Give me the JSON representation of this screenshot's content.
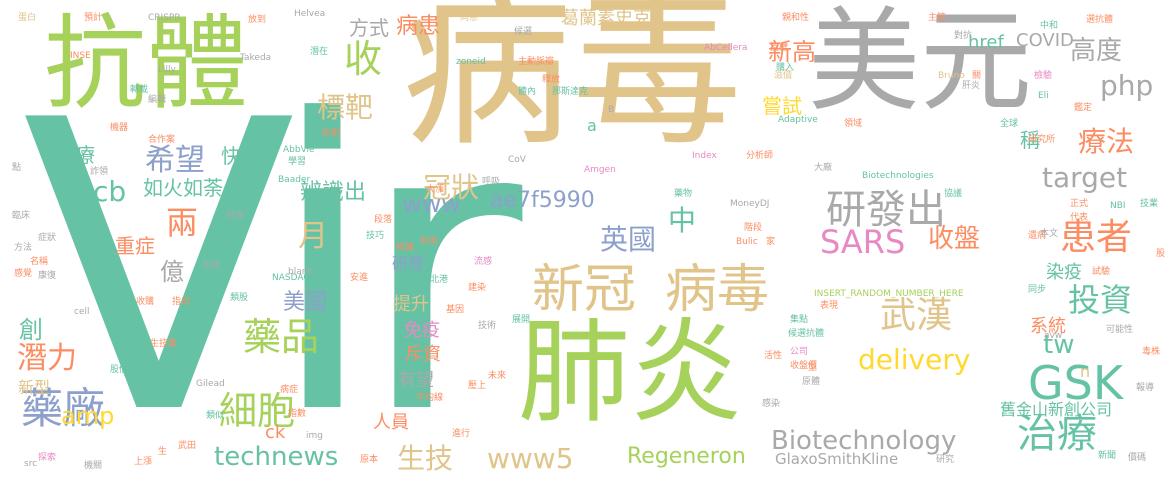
{
  "colors": {
    "green": "#a6d15a",
    "tan": "#e0c48a",
    "gray": "#a9a9a9",
    "teal": "#66c2a5",
    "orange": "#fc8d62",
    "blue": "#8da0cb",
    "yellow": "#ffd92f",
    "pink": "#e78ac3"
  },
  "words": [
    {
      "text": "Vir",
      "color": "teal"
    },
    {
      "text": "病毒",
      "color": "tan"
    },
    {
      "text": "美元",
      "color": "gray"
    },
    {
      "text": "抗體",
      "color": "green"
    },
    {
      "text": "肺炎",
      "color": "green"
    },
    {
      "text": "新冠",
      "color": "tan"
    },
    {
      "text": "病毒",
      "color": "tan"
    },
    {
      "text": "GSK",
      "color": "teal"
    },
    {
      "text": "收",
      "color": "green"
    },
    {
      "text": "藥品",
      "color": "green"
    },
    {
      "text": "細胞",
      "color": "green"
    },
    {
      "text": "藥廠",
      "color": "blue"
    },
    {
      "text": "研發出",
      "color": "gray"
    },
    {
      "text": "患者",
      "color": "orange"
    },
    {
      "text": "治療",
      "color": "teal"
    },
    {
      "text": "投資",
      "color": "teal"
    },
    {
      "text": "武漢",
      "color": "tan"
    },
    {
      "text": "SARS",
      "color": "pink"
    },
    {
      "text": "delivery",
      "color": "yellow"
    },
    {
      "text": "technews",
      "color": "teal"
    },
    {
      "text": "Biotechnology",
      "color": "gray"
    },
    {
      "text": "Regeneron",
      "color": "green"
    },
    {
      "text": "www5",
      "color": "tan"
    },
    {
      "text": "生技",
      "color": "tan"
    },
    {
      "text": "療法",
      "color": "orange"
    },
    {
      "text": "target",
      "color": "gray"
    },
    {
      "text": "高度",
      "color": "gray"
    },
    {
      "text": "php",
      "color": "gray"
    },
    {
      "text": "新高",
      "color": "orange"
    },
    {
      "text": "標靶",
      "color": "tan"
    },
    {
      "text": "冠狀",
      "color": "tan"
    },
    {
      "text": "www",
      "color": "blue"
    },
    {
      "text": "英國",
      "color": "blue"
    },
    {
      "text": "中",
      "color": "teal"
    },
    {
      "text": "收盤",
      "color": "orange"
    },
    {
      "text": "tw",
      "color": "teal"
    },
    {
      "text": "cb",
      "color": "teal"
    },
    {
      "text": "兩",
      "color": "orange"
    },
    {
      "text": "月",
      "color": "tan"
    },
    {
      "text": "希望",
      "color": "blue"
    },
    {
      "text": "潛力",
      "color": "orange"
    },
    {
      "text": "amp",
      "color": "yellow"
    },
    {
      "text": "美國",
      "color": "blue"
    },
    {
      "text": "億",
      "color": "gray"
    },
    {
      "text": "辨識出",
      "color": "teal"
    },
    {
      "text": "ae7f5990",
      "color": "blue"
    },
    {
      "text": "如火如荼",
      "color": "teal"
    },
    {
      "text": "快速",
      "color": "teal"
    },
    {
      "text": "重症",
      "color": "orange"
    },
    {
      "text": "嘗試",
      "color": "yellow"
    },
    {
      "text": "方式",
      "color": "gray"
    },
    {
      "text": "病患",
      "color": "orange"
    },
    {
      "text": "葛蘭素史克",
      "color": "tan"
    },
    {
      "text": "COVID",
      "color": "gray"
    },
    {
      "text": "href",
      "color": "teal"
    },
    {
      "text": "系統",
      "color": "orange"
    },
    {
      "text": "染疫",
      "color": "teal"
    },
    {
      "text": "稱",
      "color": "teal"
    },
    {
      "text": "舊金山新創公司",
      "color": "teal"
    },
    {
      "text": "GlaxoSmithKline",
      "color": "gray"
    },
    {
      "text": "醫療",
      "color": "teal"
    },
    {
      "text": "創",
      "color": "teal"
    },
    {
      "text": "新型",
      "color": "tan"
    },
    {
      "text": "免疫",
      "color": "pink"
    },
    {
      "text": "斥資",
      "color": "orange"
    },
    {
      "text": "有望",
      "color": "gray"
    },
    {
      "text": "提升",
      "color": "tan"
    },
    {
      "text": "人員",
      "color": "orange"
    },
    {
      "text": "研發",
      "color": "blue"
    },
    {
      "text": "ck",
      "color": "orange"
    },
    {
      "text": "a",
      "color": "teal"
    },
    {
      "text": "n",
      "color": "tan"
    },
    {
      "text": "INSERT_RANDOM_NUMBER_HERE",
      "color": "green"
    },
    {
      "text": "Biotechnologies",
      "color": "teal"
    },
    {
      "text": "Adaptive",
      "color": "teal"
    },
    {
      "text": "AbCellera",
      "color": "pink"
    },
    {
      "text": "Amgen",
      "color": "pink"
    },
    {
      "text": "MoneyDJ",
      "color": "gray"
    },
    {
      "text": "Baader",
      "color": "teal"
    },
    {
      "text": "AbbVie",
      "color": "teal"
    },
    {
      "text": "Takeda",
      "color": "gray"
    },
    {
      "text": "Gilead",
      "color": "gray"
    },
    {
      "text": "NASDAQ",
      "color": "teal"
    },
    {
      "text": "Lilly",
      "color": "gray"
    },
    {
      "text": "CRISPR",
      "color": "gray"
    },
    {
      "text": "Helvea",
      "color": "gray"
    },
    {
      "text": "Bruno",
      "color": "tan"
    },
    {
      "text": "Bulic",
      "color": "orange"
    },
    {
      "text": "Index",
      "color": "pink"
    },
    {
      "text": "zoneid",
      "color": "teal"
    },
    {
      "text": "CoV",
      "color": "gray"
    },
    {
      "text": "blank",
      "color": "gray"
    },
    {
      "text": "img",
      "color": "gray"
    },
    {
      "text": "src",
      "color": "gray"
    },
    {
      "text": "cell",
      "color": "gray"
    },
    {
      "text": "avw",
      "color": "gray"
    },
    {
      "text": "NBI",
      "color": "teal"
    },
    {
      "text": "INSE",
      "color": "orange"
    },
    {
      "text": "Eli",
      "color": "teal"
    },
    {
      "text": "B",
      "color": "gray"
    },
    {
      "text": "蛋白",
      "color": "tan"
    },
    {
      "text": "預計",
      "color": "orange"
    },
    {
      "text": "同意",
      "color": "tan"
    },
    {
      "text": "候選",
      "color": "gray"
    },
    {
      "text": "主管",
      "color": "orange"
    },
    {
      "text": "選抗體",
      "color": "orange"
    },
    {
      "text": "親和性",
      "color": "orange"
    },
    {
      "text": "對抗",
      "color": "gray"
    },
    {
      "text": "中和",
      "color": "teal"
    },
    {
      "text": "檢驗",
      "color": "pink"
    },
    {
      "text": "鑑定",
      "color": "orange"
    },
    {
      "text": "肝炎",
      "color": "gray"
    },
    {
      "text": "滋價",
      "color": "tan"
    },
    {
      "text": "潛在",
      "color": "teal"
    },
    {
      "text": "轉載",
      "color": "teal"
    },
    {
      "text": "編輯",
      "color": "gray"
    },
    {
      "text": "機器",
      "color": "orange"
    },
    {
      "text": "合作案",
      "color": "orange"
    },
    {
      "text": "學習",
      "color": "teal"
    },
    {
      "text": "類似",
      "color": "teal"
    },
    {
      "text": "病症",
      "color": "orange"
    },
    {
      "text": "指數",
      "color": "orange"
    },
    {
      "text": "原本",
      "color": "orange"
    },
    {
      "text": "新聞",
      "color": "teal"
    },
    {
      "text": "價碼",
      "color": "gray"
    },
    {
      "text": "研究",
      "color": "gray"
    },
    {
      "text": "感染",
      "color": "gray"
    },
    {
      "text": "原體",
      "color": "gray"
    },
    {
      "text": "收盤價",
      "color": "orange"
    },
    {
      "text": "公司",
      "color": "pink"
    },
    {
      "text": "活性",
      "color": "orange"
    },
    {
      "text": "未來",
      "color": "orange"
    },
    {
      "text": "進行",
      "color": "orange"
    },
    {
      "text": "平均線",
      "color": "orange"
    },
    {
      "text": "展開",
      "color": "teal"
    },
    {
      "text": "集點",
      "color": "teal"
    },
    {
      "text": "表現",
      "color": "orange"
    },
    {
      "text": "候選抗體",
      "color": "teal"
    },
    {
      "text": "技術",
      "color": "gray"
    },
    {
      "text": "基因",
      "color": "orange"
    },
    {
      "text": "建染",
      "color": "orange"
    },
    {
      "text": "北港",
      "color": "teal"
    },
    {
      "text": "利用",
      "color": "orange"
    },
    {
      "text": "辨識",
      "color": "orange"
    },
    {
      "text": "技巧",
      "color": "teal"
    },
    {
      "text": "安進",
      "color": "orange"
    },
    {
      "text": "指出",
      "color": "orange"
    },
    {
      "text": "收購",
      "color": "orange"
    },
    {
      "text": "類股",
      "color": "teal"
    },
    {
      "text": "包括",
      "color": "gray"
    },
    {
      "text": "方法",
      "color": "gray"
    },
    {
      "text": "感覺",
      "color": "orange"
    },
    {
      "text": "名稱",
      "color": "orange"
    },
    {
      "text": "康復",
      "color": "gray"
    },
    {
      "text": "症狀",
      "color": "gray"
    },
    {
      "text": "臨床",
      "color": "gray"
    },
    {
      "text": "點",
      "color": "gray"
    },
    {
      "text": "詐領",
      "color": "gray"
    },
    {
      "text": "探索",
      "color": "pink"
    },
    {
      "text": "機關",
      "color": "gray"
    },
    {
      "text": "上漲",
      "color": "orange"
    },
    {
      "text": "武田",
      "color": "orange"
    },
    {
      "text": "生",
      "color": "orange"
    },
    {
      "text": "股價",
      "color": "teal"
    },
    {
      "text": "生技業",
      "color": "orange"
    },
    {
      "text": "放到",
      "color": "orange"
    },
    {
      "text": "呼吸",
      "color": "gray"
    },
    {
      "text": "大漲",
      "color": "orange"
    },
    {
      "text": "大廠",
      "color": "gray"
    },
    {
      "text": "分析師",
      "color": "orange"
    },
    {
      "text": "那斯達克",
      "color": "teal"
    },
    {
      "text": "主動脈瓣",
      "color": "orange"
    },
    {
      "text": "體內",
      "color": "teal"
    },
    {
      "text": "抑制",
      "color": "orange"
    },
    {
      "text": "冠病",
      "color": "gray"
    },
    {
      "text": "段落",
      "color": "orange"
    },
    {
      "text": "階段",
      "color": "orange"
    },
    {
      "text": "家",
      "color": "orange"
    },
    {
      "text": "購入",
      "color": "teal"
    },
    {
      "text": "授權",
      "color": "orange"
    },
    {
      "text": "全球",
      "color": "teal"
    },
    {
      "text": "領域",
      "color": "orange"
    },
    {
      "text": "遺病",
      "color": "orange"
    },
    {
      "text": "正式",
      "color": "orange"
    },
    {
      "text": "代表",
      "color": "orange"
    },
    {
      "text": "技業",
      "color": "teal"
    },
    {
      "text": "本文",
      "color": "gray"
    },
    {
      "text": "同步",
      "color": "teal"
    },
    {
      "text": "試驗",
      "color": "orange"
    },
    {
      "text": "可能性",
      "color": "gray"
    },
    {
      "text": "毒株",
      "color": "orange"
    },
    {
      "text": "報導",
      "color": "gray"
    },
    {
      "text": "股",
      "color": "orange"
    },
    {
      "text": "型",
      "color": "orange"
    },
    {
      "text": "關",
      "color": "orange"
    },
    {
      "text": "協議",
      "color": "teal"
    },
    {
      "text": "釋放",
      "color": "orange"
    },
    {
      "text": "流感",
      "color": "pink"
    },
    {
      "text": "藥物",
      "color": "teal"
    },
    {
      "text": "壓上",
      "color": "orange"
    },
    {
      "text": "研究所",
      "color": "orange"
    }
  ]
}
